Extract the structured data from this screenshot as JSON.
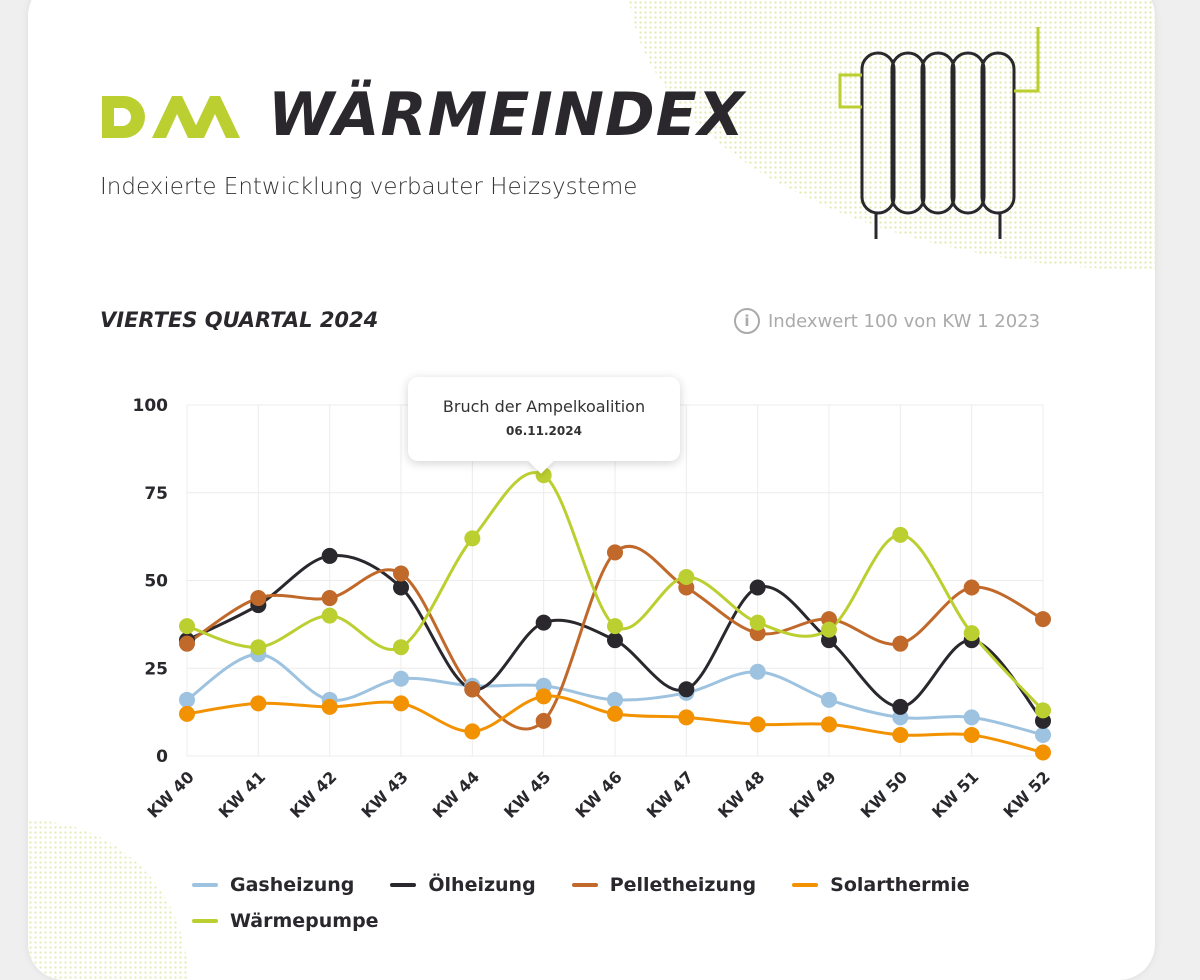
{
  "header": {
    "logo_text": "DAA",
    "title": "WÄRMEINDEX",
    "subtitle": "Indexierte Entwicklung verbauter Heizsysteme"
  },
  "section": {
    "title": "VIERTES QUARTAL 2024",
    "info_text": "Indexwert 100 von KW 1 2023",
    "info_icon": "info-icon"
  },
  "annotation": {
    "title": "Bruch der Ampelkoalition",
    "date": "06.11.2024",
    "category": "KW 45"
  },
  "chart_data": {
    "type": "line",
    "title": "VIERTES QUARTAL 2024",
    "xlabel": "",
    "ylabel": "",
    "ylim": [
      0,
      100
    ],
    "yticks": [
      "0",
      "25",
      "50",
      "75",
      "100"
    ],
    "grid": true,
    "legend_position": "bottom",
    "categories": [
      "KW 40",
      "KW 41",
      "KW 42",
      "KW 43",
      "KW 44",
      "KW 45",
      "KW 46",
      "KW 47",
      "KW 48",
      "KW 49",
      "KW 50",
      "KW 51",
      "KW 52"
    ],
    "series": [
      {
        "name": "Gasheizung",
        "color": "#9ec3e0",
        "values": [
          16,
          29,
          16,
          22,
          20,
          20,
          16,
          18,
          24,
          16,
          11,
          11,
          6
        ]
      },
      {
        "name": "Ölheizung",
        "color": "#2a282d",
        "values": [
          33,
          43,
          57,
          48,
          19,
          38,
          33,
          19,
          48,
          33,
          14,
          33,
          10
        ]
      },
      {
        "name": "Pelletheizung",
        "color": "#c0692a",
        "values": [
          32,
          45,
          45,
          52,
          19,
          10,
          58,
          48,
          35,
          39,
          32,
          48,
          39
        ]
      },
      {
        "name": "Solarthermie",
        "color": "#f39200",
        "values": [
          12,
          15,
          14,
          15,
          7,
          17,
          12,
          11,
          9,
          9,
          6,
          6,
          1
        ]
      },
      {
        "name": "Wärmepumpe",
        "color": "#bccf31",
        "values": [
          37,
          31,
          40,
          31,
          62,
          80,
          37,
          51,
          38,
          36,
          63,
          35,
          13
        ]
      }
    ]
  }
}
